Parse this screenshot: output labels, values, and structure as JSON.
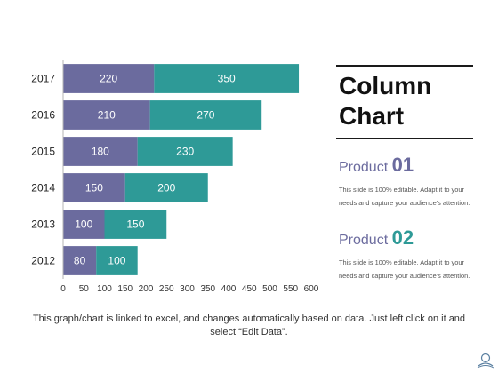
{
  "chart_data": {
    "type": "bar",
    "orientation": "horizontal",
    "stacked": true,
    "categories": [
      "2017",
      "2016",
      "2015",
      "2014",
      "2013",
      "2012"
    ],
    "series": [
      {
        "values": [
          220,
          210,
          180,
          150,
          100,
          80
        ]
      },
      {
        "values": [
          350,
          270,
          230,
          200,
          150,
          100
        ]
      }
    ],
    "xlim": [
      0,
      600
    ],
    "x_ticks": [
      "0",
      "50",
      "100",
      "150",
      "200",
      "250",
      "300",
      "350",
      "400",
      "450",
      "500",
      "550",
      "600"
    ],
    "grid": false,
    "legend": "none",
    "data_labels": true
  },
  "colors": {
    "series_1": "#6b6b9e",
    "series_2": "#2e9a97",
    "product_01_number": "#6b6b9e",
    "product_02_number": "#2e9a97"
  },
  "panel": {
    "title_line1": "Column",
    "title_line2": "Chart",
    "products": [
      {
        "name": "Product",
        "number": "01",
        "description": "This slide is 100% editable. Adapt it to your needs and capture your audience's attention."
      },
      {
        "name": "Product",
        "number": "02",
        "description": "This slide is 100% editable. Adapt it to your needs and capture your audience's attention."
      }
    ]
  },
  "footer": {
    "text_line1": "This graph/chart is linked to excel, and changes automatically based on data. Just left click on it and",
    "text_line2": "select “Edit Data”."
  },
  "icons": {
    "corner": "doodle-logo-icon"
  }
}
